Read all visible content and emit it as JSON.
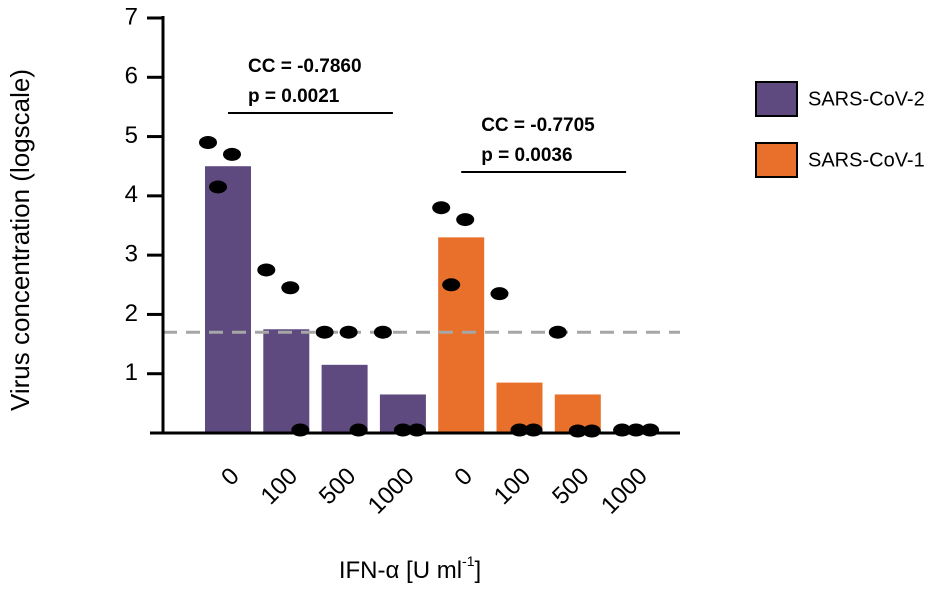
{
  "chart_data": {
    "type": "bar",
    "y_label": "Virus concentration (logscale)",
    "x_label_parts": [
      "IFN-α [U ml",
      "-1",
      "]"
    ],
    "categories": [
      "0",
      "100",
      "500",
      "1000",
      "0",
      "100",
      "500",
      "1000"
    ],
    "series": [
      {
        "name": "SARS-CoV-2",
        "color": "#5e4a7e",
        "values": [
          4.5,
          1.75,
          1.15,
          0.65,
          null,
          null,
          null,
          null
        ],
        "points": [
          [
            4.9,
            4.7,
            4.15
          ],
          [
            2.75,
            2.45,
            0.05
          ],
          [
            1.7,
            1.7,
            0.05
          ],
          [
            1.7,
            0.05,
            0.05
          ],
          null,
          null,
          null,
          null
        ]
      },
      {
        "name": "SARS-CoV-1",
        "color": "#e8702a",
        "values": [
          null,
          null,
          null,
          null,
          3.3,
          0.85,
          0.65,
          0
        ],
        "points": [
          null,
          null,
          null,
          null,
          [
            3.8,
            3.6,
            2.5
          ],
          [
            2.35,
            0.05,
            0.05
          ],
          [
            1.7,
            0,
            0
          ],
          [
            0.05,
            0.05,
            0.05
          ]
        ]
      }
    ],
    "threshold": 1.7,
    "threshold_color": "#a6a6a6",
    "ylim": [
      0,
      7
    ],
    "yticks": [
      1,
      2,
      3,
      4,
      5,
      6,
      7
    ],
    "annotations": [
      {
        "lines": [
          "CC = -0.7860",
          "p = 0.0021"
        ],
        "from": 0,
        "to": 3
      },
      {
        "lines": [
          "CC = -0.7705",
          "p = 0.0036"
        ],
        "from": 4,
        "to": 7
      }
    ],
    "legend": "right"
  }
}
